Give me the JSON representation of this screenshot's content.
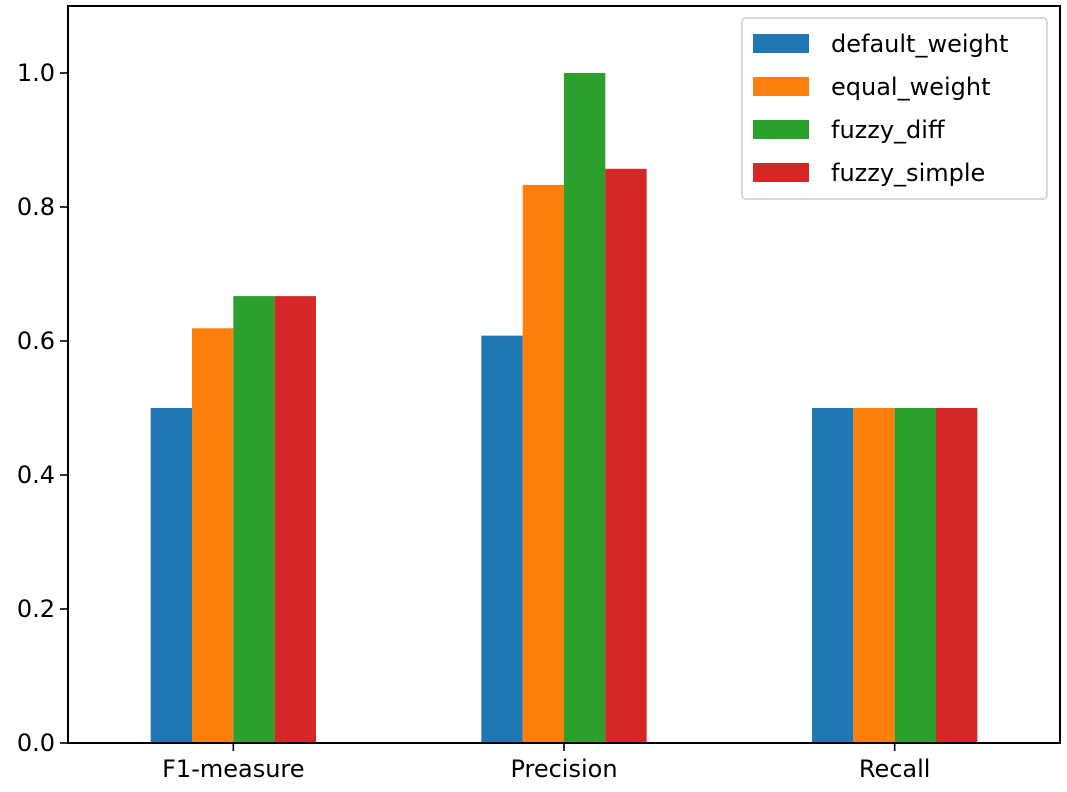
{
  "chart_data": {
    "type": "bar",
    "categories": [
      "F1-measure",
      "Precision",
      "Recall"
    ],
    "series": [
      {
        "name": "default_weight",
        "color": "#1f77b4",
        "values": [
          0.5,
          0.608,
          0.5
        ]
      },
      {
        "name": "equal_weight",
        "color": "#ff7f0e",
        "values": [
          0.619,
          0.833,
          0.5
        ]
      },
      {
        "name": "fuzzy_diff",
        "color": "#2ca02c",
        "values": [
          0.667,
          1.0,
          0.5
        ]
      },
      {
        "name": "fuzzy_simple",
        "color": "#d62728",
        "values": [
          0.667,
          0.857,
          0.5
        ]
      }
    ],
    "ylim": [
      0,
      1.1
    ],
    "yticks": [
      "0.0",
      "0.2",
      "0.4",
      "0.6",
      "0.8",
      "1.0"
    ],
    "grid": false,
    "legend_position": "top-right"
  }
}
